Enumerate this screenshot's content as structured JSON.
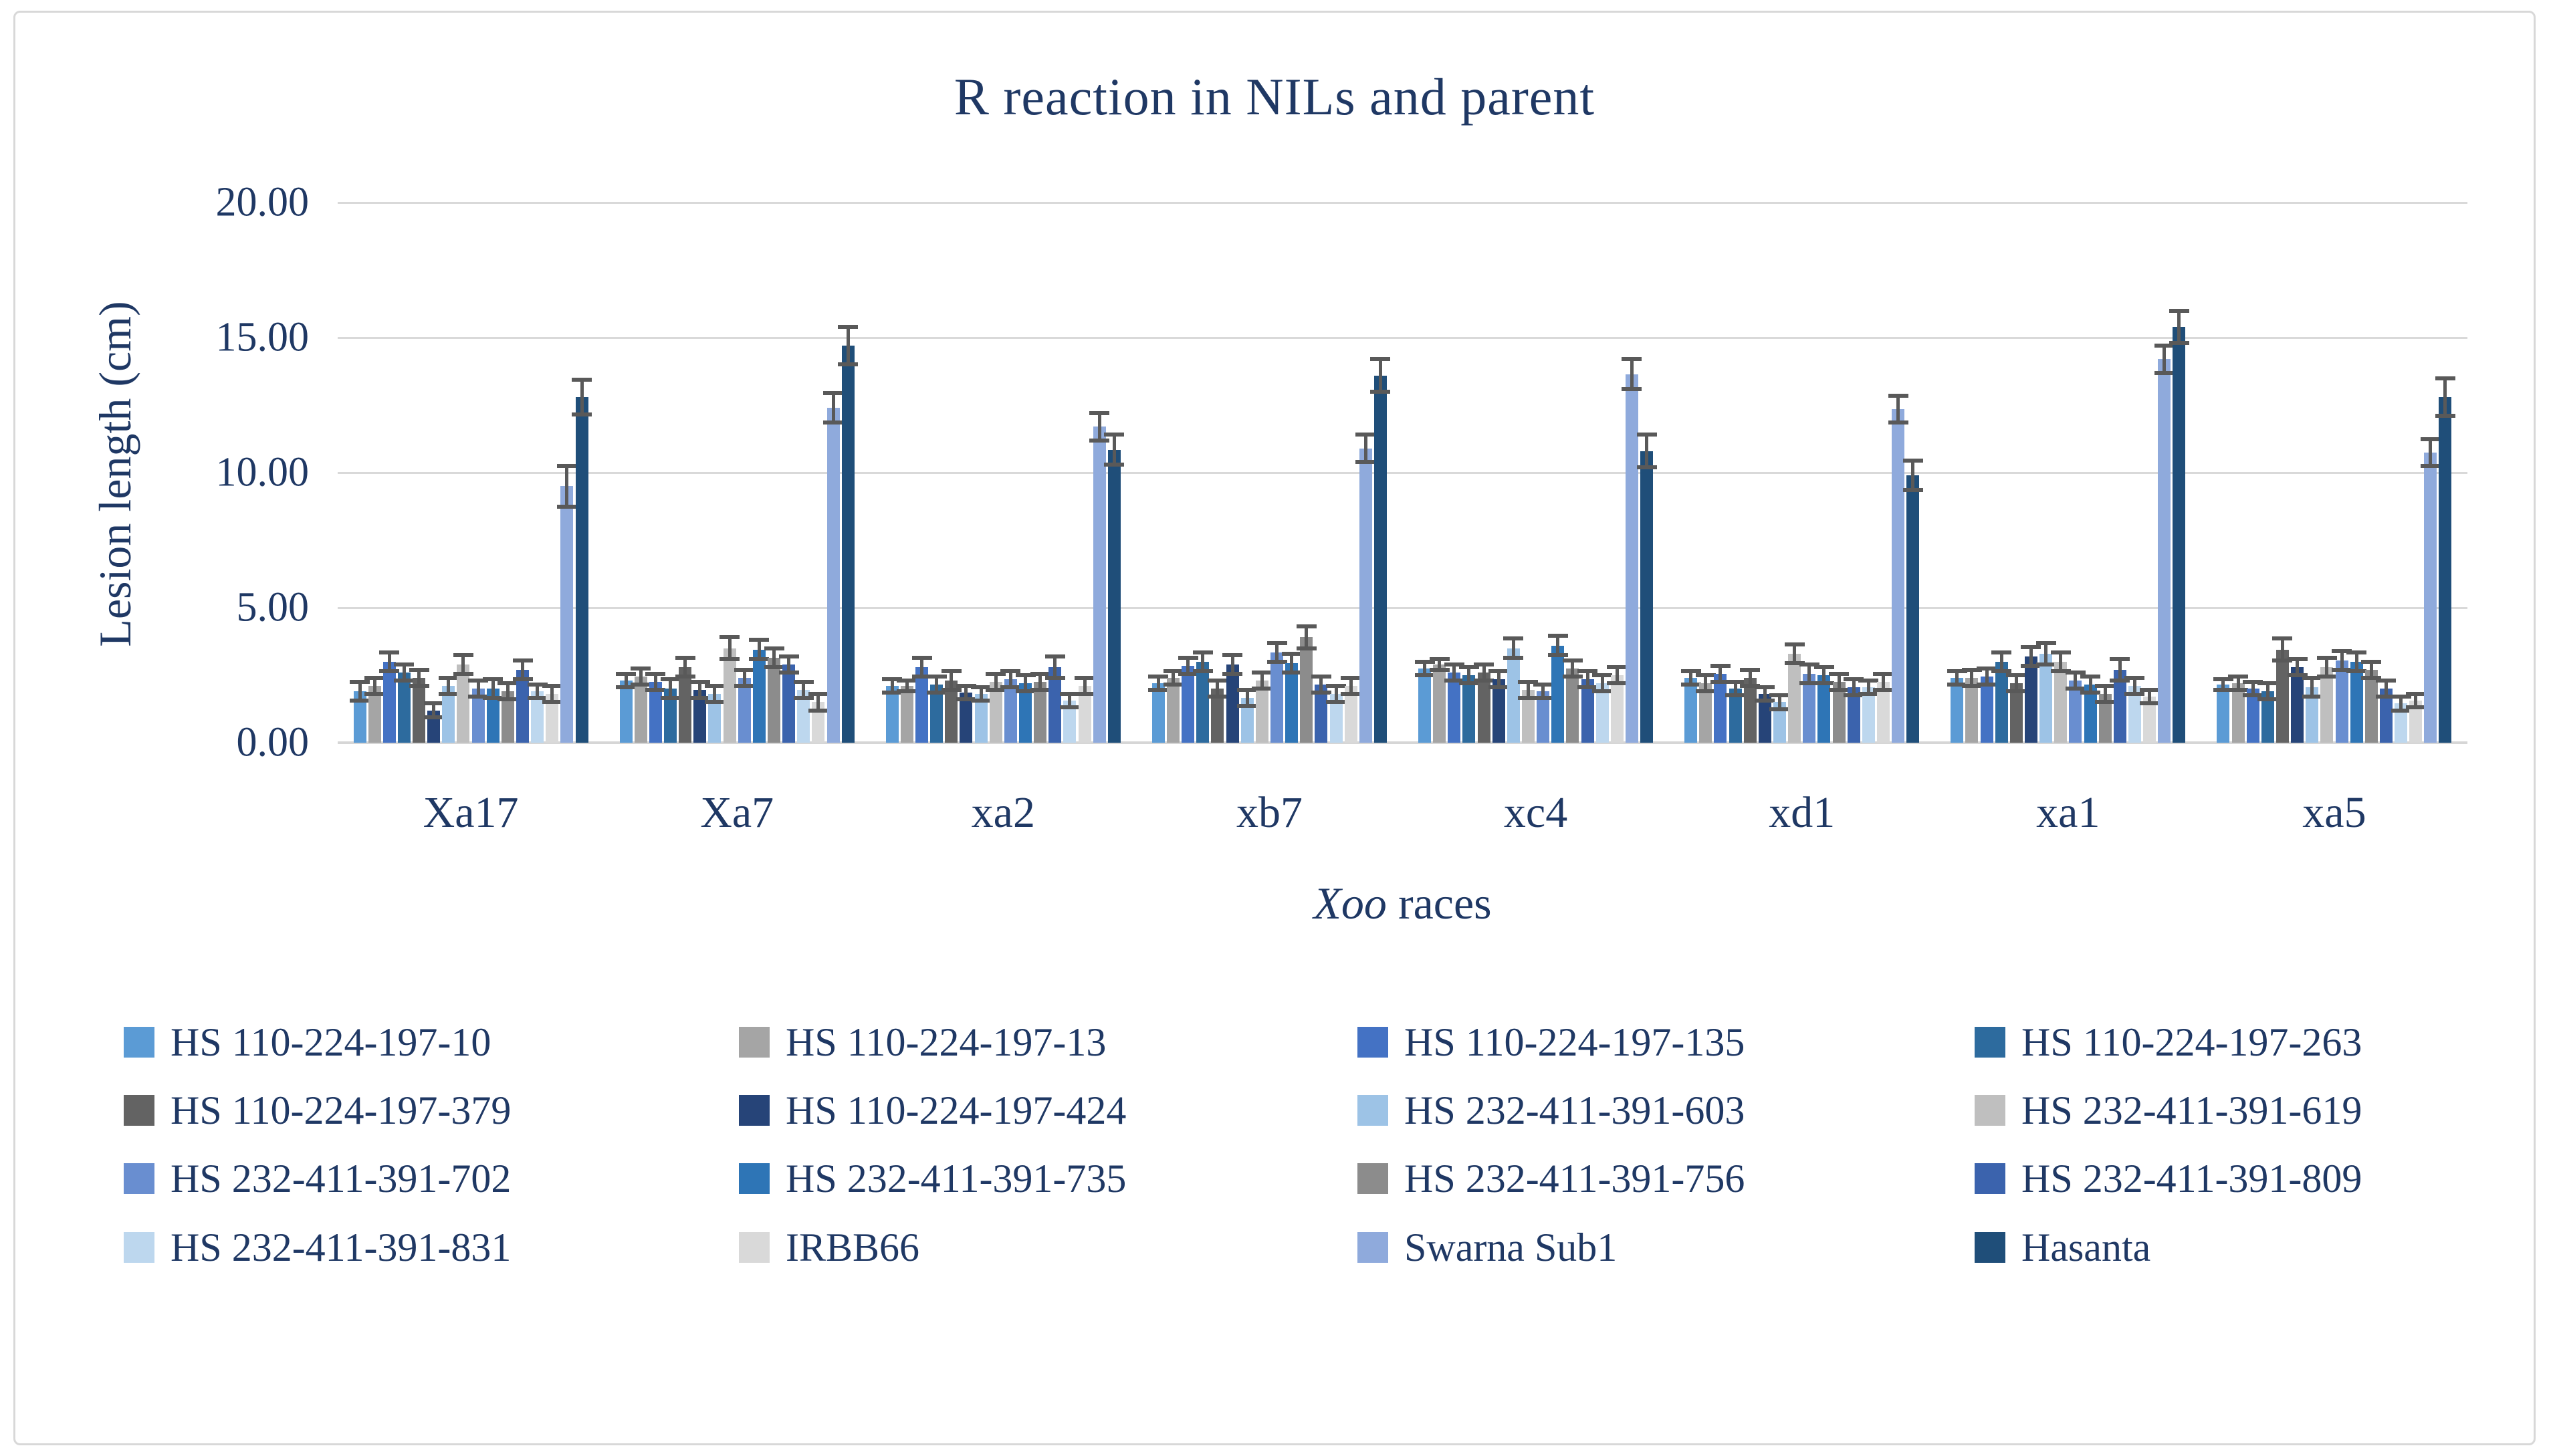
{
  "figure": {
    "background_color": "#FFFFFF",
    "border_color": "#D8D8D8",
    "text_color": "#1F3864",
    "gridline_color": "#D9D9D9",
    "error_bar_color": "#595959"
  },
  "chart_data": {
    "type": "bar",
    "title": "R reaction in NILs and parent",
    "xlabel": "Xoo races",
    "xlabel_italic_part": "Xoo",
    "xlabel_regular_part": " races",
    "ylabel": "Lesion length (cm)",
    "ylim": [
      0,
      20
    ],
    "ytick_values": [
      0,
      5,
      10,
      15,
      20
    ],
    "ytick_labels": [
      "0.00",
      "5.00",
      "10.00",
      "15.00",
      "20.00"
    ],
    "grid": true,
    "error_bars": true,
    "legend_position": "bottom",
    "categories": [
      "Xa17",
      "Xa7",
      "xa2",
      "xb7",
      "xc4",
      "xd1",
      "xa1",
      "xa5"
    ],
    "series": [
      {
        "name": "HS 110-224-197-10",
        "color": "#5B9BD5",
        "values": [
          1.9,
          2.3,
          2.1,
          2.2,
          2.75,
          2.4,
          2.4,
          2.15
        ],
        "errors": [
          0.35,
          0.25,
          0.25,
          0.25,
          0.25,
          0.25,
          0.25,
          0.2
        ]
      },
      {
        "name": "HS 110-224-197-13",
        "color": "#A5A5A5",
        "values": [
          2.1,
          2.45,
          2.1,
          2.4,
          2.9,
          2.2,
          2.4,
          2.2
        ],
        "errors": [
          0.3,
          0.3,
          0.2,
          0.25,
          0.2,
          0.3,
          0.3,
          0.25
        ]
      },
      {
        "name": "HS 110-224-197-135",
        "color": "#4472C4",
        "values": [
          3.0,
          2.25,
          2.8,
          2.85,
          2.6,
          2.55,
          2.45,
          2.0
        ],
        "errors": [
          0.35,
          0.3,
          0.35,
          0.3,
          0.3,
          0.3,
          0.3,
          0.25
        ]
      },
      {
        "name": "HS 110-224-197-263",
        "color": "#2D6B9E",
        "values": [
          2.6,
          2.0,
          2.15,
          3.0,
          2.5,
          2.0,
          3.0,
          1.9
        ],
        "errors": [
          0.3,
          0.35,
          0.3,
          0.35,
          0.3,
          0.25,
          0.35,
          0.3
        ]
      },
      {
        "name": "HS 110-224-197-379",
        "color": "#636363",
        "values": [
          2.4,
          2.8,
          2.3,
          2.0,
          2.6,
          2.4,
          2.2,
          3.45
        ],
        "errors": [
          0.3,
          0.35,
          0.35,
          0.3,
          0.3,
          0.3,
          0.3,
          0.4
        ]
      },
      {
        "name": "HS 110-224-197-424",
        "color": "#264478",
        "values": [
          1.2,
          1.95,
          1.85,
          2.9,
          2.35,
          1.8,
          3.2,
          2.8
        ],
        "errors": [
          0.25,
          0.3,
          0.25,
          0.35,
          0.3,
          0.25,
          0.35,
          0.3
        ]
      },
      {
        "name": "HS 232-411-391-603",
        "color": "#9DC3E6",
        "values": [
          2.1,
          1.8,
          1.8,
          1.65,
          3.5,
          1.5,
          3.3,
          2.05
        ],
        "errors": [
          0.3,
          0.3,
          0.25,
          0.3,
          0.35,
          0.25,
          0.4,
          0.35
        ]
      },
      {
        "name": "HS 232-411-391-619",
        "color": "#BFBFBF",
        "values": [
          2.9,
          3.5,
          2.25,
          2.3,
          1.95,
          3.3,
          3.0,
          2.8
        ],
        "errors": [
          0.35,
          0.4,
          0.3,
          0.3,
          0.3,
          0.35,
          0.35,
          0.35
        ]
      },
      {
        "name": "HS 232-411-391-702",
        "color": "#698ED0",
        "values": [
          2.0,
          2.4,
          2.35,
          3.35,
          1.9,
          2.55,
          2.3,
          3.05
        ],
        "errors": [
          0.3,
          0.3,
          0.3,
          0.35,
          0.25,
          0.35,
          0.3,
          0.35
        ]
      },
      {
        "name": "HS 232-411-391-735",
        "color": "#2E75B6",
        "values": [
          2.0,
          3.45,
          2.2,
          2.95,
          3.6,
          2.5,
          2.15,
          3.0
        ],
        "errors": [
          0.35,
          0.35,
          0.3,
          0.35,
          0.35,
          0.3,
          0.3,
          0.35
        ]
      },
      {
        "name": "HS 232-411-391-756",
        "color": "#8C8C8C",
        "values": [
          1.9,
          3.15,
          2.25,
          3.9,
          2.75,
          2.25,
          1.8,
          2.7
        ],
        "errors": [
          0.3,
          0.35,
          0.3,
          0.4,
          0.3,
          0.3,
          0.3,
          0.3
        ]
      },
      {
        "name": "HS 232-411-391-809",
        "color": "#3B63AD",
        "values": [
          2.7,
          2.9,
          2.8,
          2.15,
          2.35,
          2.05,
          2.7,
          2.0
        ],
        "errors": [
          0.35,
          0.3,
          0.4,
          0.3,
          0.3,
          0.3,
          0.4,
          0.3
        ]
      },
      {
        "name": "HS 232-411-391-831",
        "color": "#BDD7EE",
        "values": [
          1.9,
          1.95,
          1.55,
          1.8,
          2.2,
          2.05,
          2.1,
          1.45
        ],
        "errors": [
          0.25,
          0.3,
          0.25,
          0.3,
          0.3,
          0.25,
          0.3,
          0.25
        ]
      },
      {
        "name": "IRBB66",
        "color": "#D9D9D9",
        "values": [
          1.8,
          1.5,
          2.1,
          2.1,
          2.5,
          2.25,
          1.7,
          1.55
        ],
        "errors": [
          0.3,
          0.3,
          0.3,
          0.3,
          0.3,
          0.3,
          0.25,
          0.25
        ]
      },
      {
        "name": "Swarna Sub1",
        "color": "#8FAADC",
        "values": [
          9.5,
          12.4,
          11.7,
          10.9,
          13.65,
          12.35,
          14.2,
          10.75
        ],
        "errors": [
          0.75,
          0.55,
          0.5,
          0.5,
          0.55,
          0.5,
          0.5,
          0.5
        ]
      },
      {
        "name": "Hasanta",
        "color": "#1F4E79",
        "values": [
          12.8,
          14.7,
          10.85,
          13.6,
          10.8,
          9.9,
          15.4,
          12.8
        ],
        "errors": [
          0.65,
          0.7,
          0.55,
          0.6,
          0.6,
          0.55,
          0.6,
          0.7
        ]
      }
    ]
  }
}
